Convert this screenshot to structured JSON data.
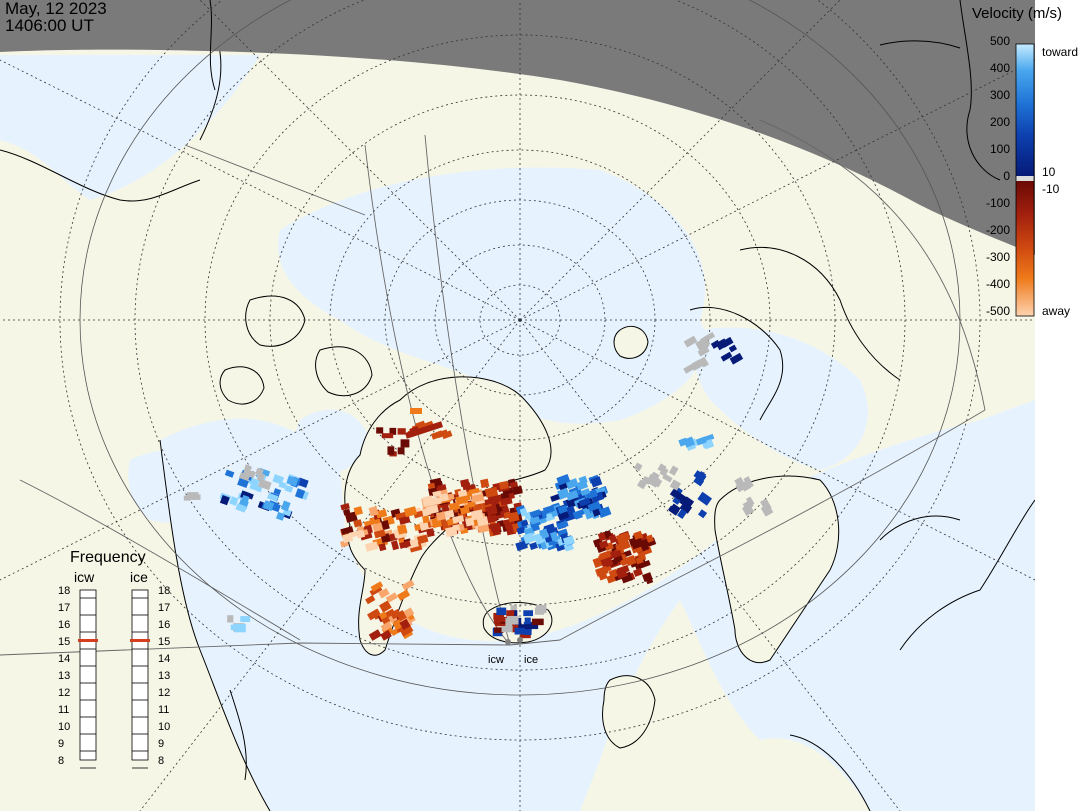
{
  "header": {
    "date": "May, 12 2023",
    "time": "1406:00 UT"
  },
  "velocity_legend": {
    "title": "Velocity (m/s)",
    "ticks": [
      "500",
      "400",
      "300",
      "200",
      "100",
      "0",
      "-100",
      "-200",
      "-300",
      "-400",
      "-500"
    ],
    "toward_label": "toward",
    "away_label": "away",
    "upper_threshold": "10",
    "lower_threshold": "-10",
    "toward_colors": [
      "#c6ecff",
      "#8dd4ff",
      "#4aa7ee",
      "#1f73d6",
      "#0d3fae",
      "#061a78"
    ],
    "away_colors": [
      "#6a0a05",
      "#a3200e",
      "#cf4a10",
      "#ef7a1a",
      "#f9a66c",
      "#fdd3b0"
    ],
    "colors": {
      "daylight_land": "#f6f6e6",
      "night": "#7a7a7a",
      "ocean": "#e6f3ff",
      "ground_scatter": "#b9b9b9"
    }
  },
  "frequency_panel": {
    "title": "Frequency",
    "radars": [
      {
        "name": "icw",
        "selected": "15"
      },
      {
        "name": "ice",
        "selected": "15"
      }
    ],
    "scale": [
      "18",
      "17",
      "16",
      "15",
      "14",
      "13",
      "12",
      "11",
      "10",
      "9",
      "8"
    ]
  },
  "radar_sites": [
    {
      "label": "icw"
    },
    {
      "label": "ice"
    }
  ]
}
